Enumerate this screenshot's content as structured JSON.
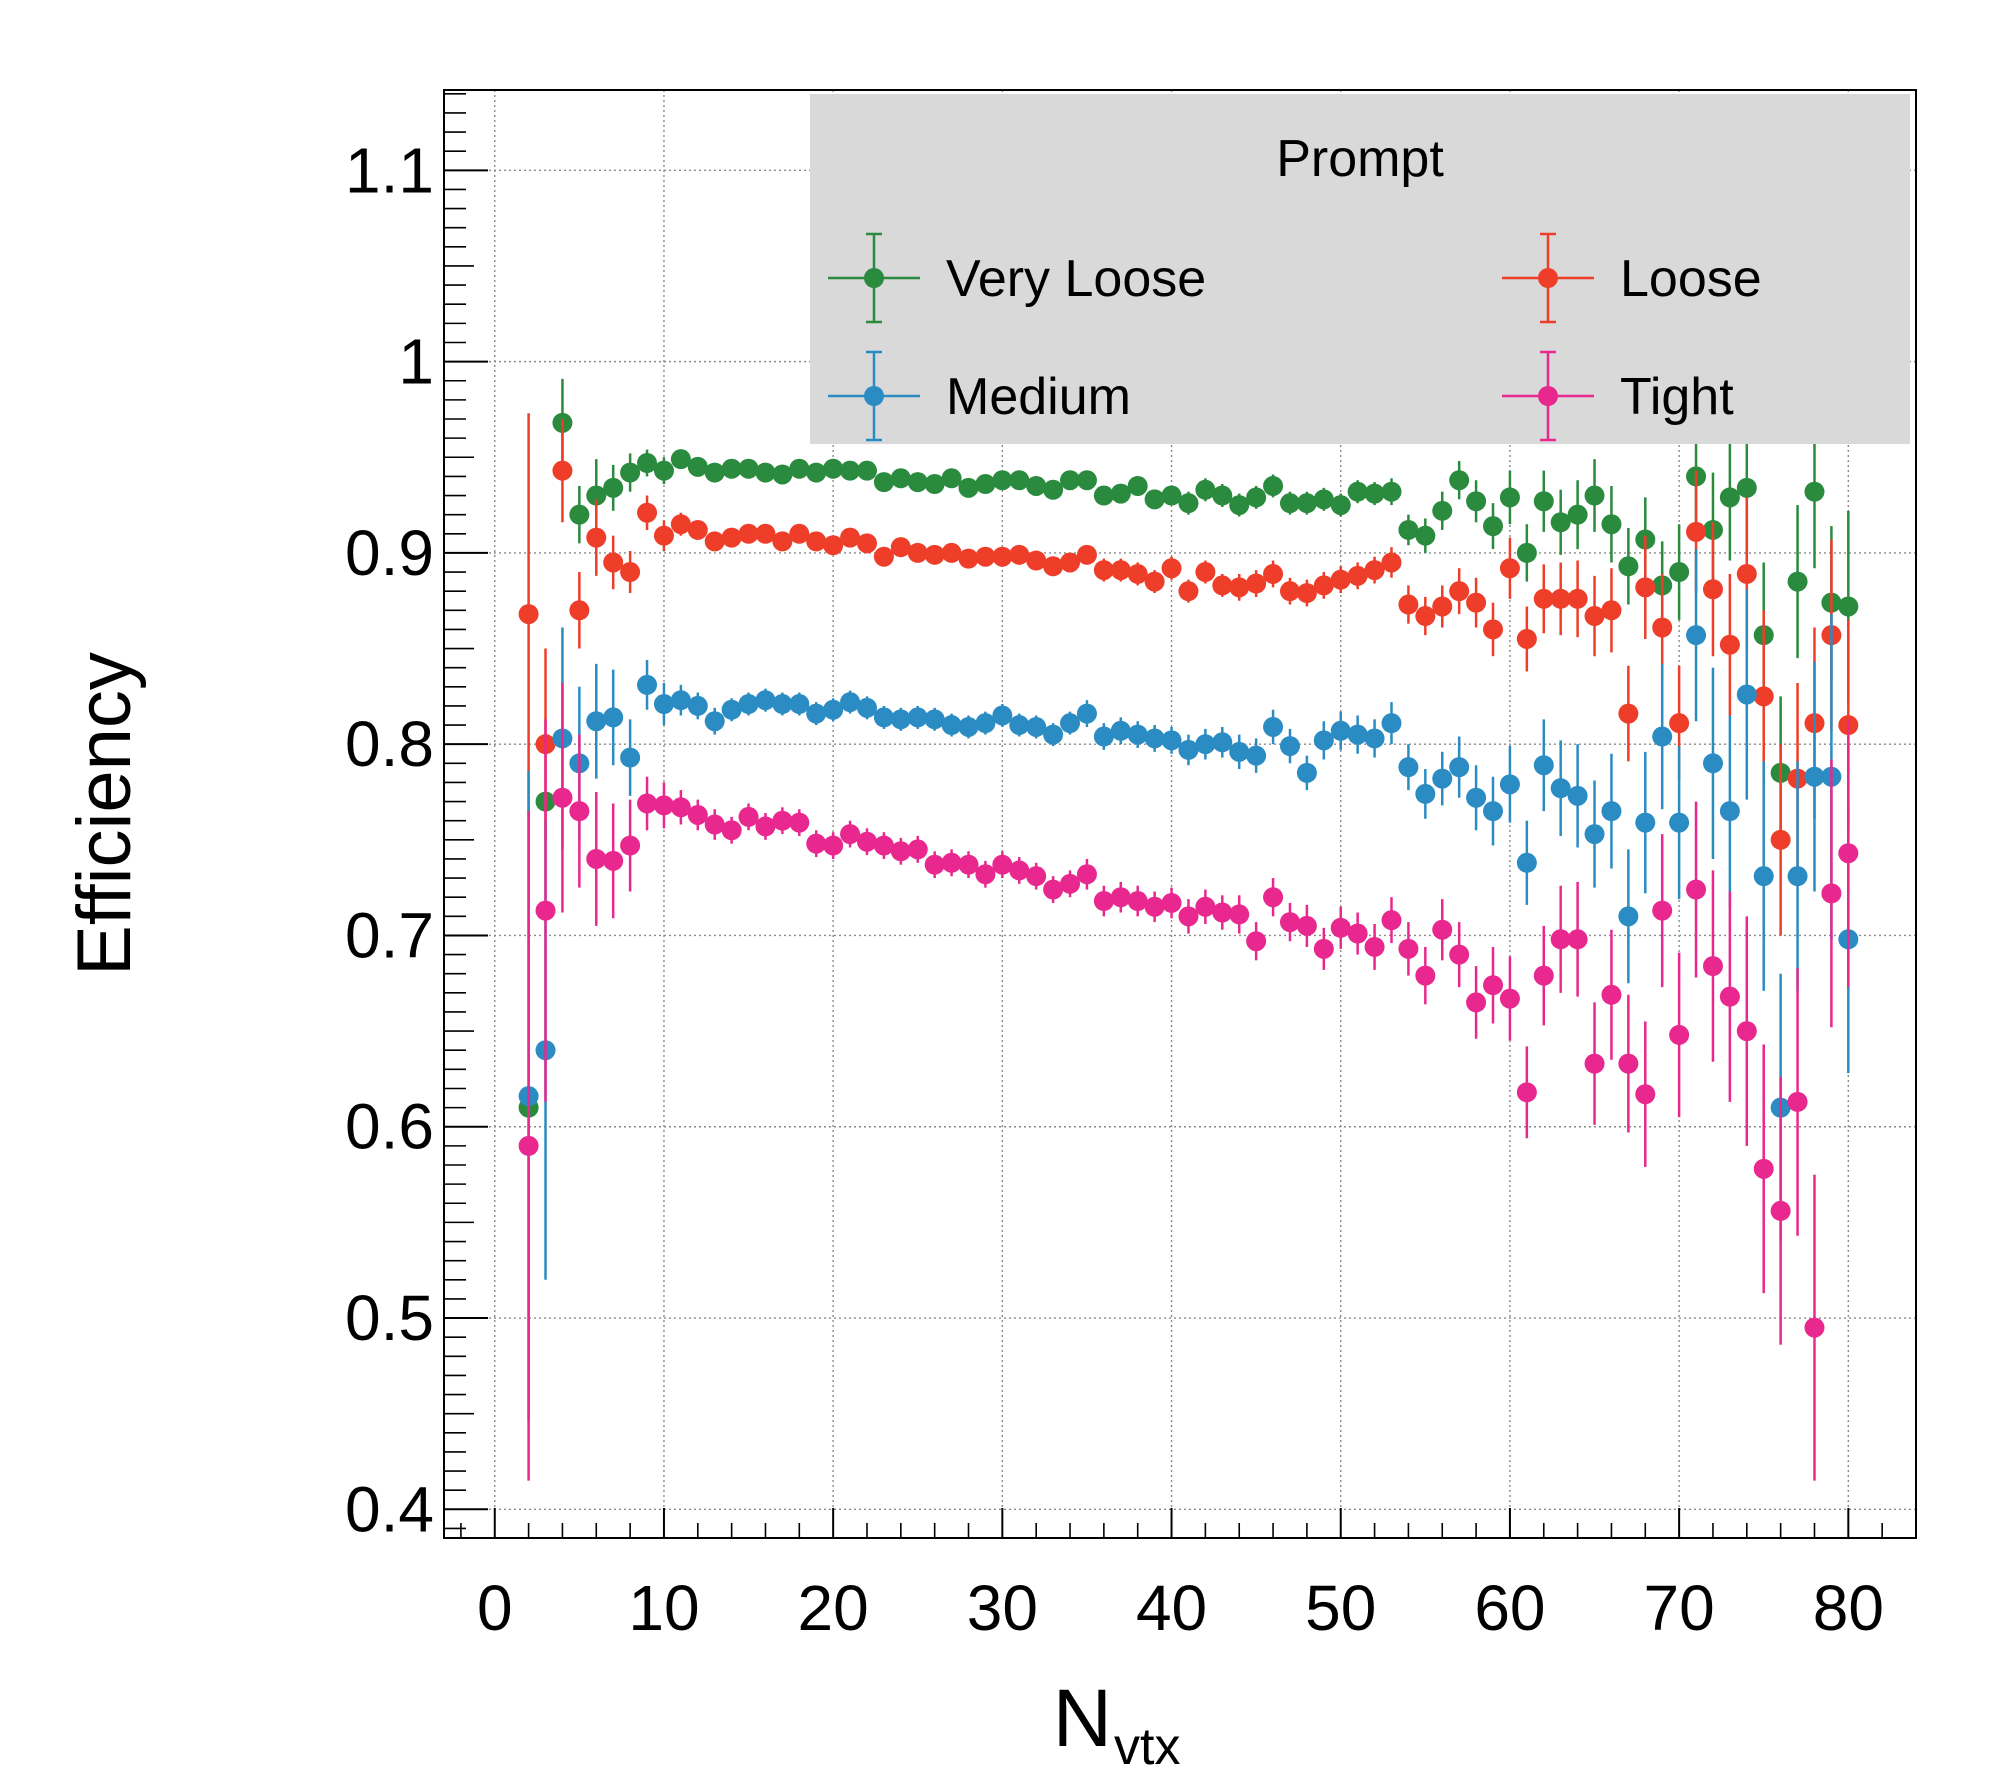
{
  "chart_data": {
    "type": "scatter",
    "title": "",
    "xlabel": "N",
    "xlabel_sub": "vtx",
    "ylabel": "Efficiency",
    "xlim": [
      -3,
      84
    ],
    "ylim": [
      0.385,
      1.142
    ],
    "xticks": [
      0,
      10,
      20,
      30,
      40,
      50,
      60,
      70,
      80
    ],
    "yticks": [
      0.4,
      0.5,
      0.6,
      0.7,
      0.8,
      0.9,
      1,
      1.1
    ],
    "xtick_labels": [
      "0",
      "10",
      "20",
      "30",
      "40",
      "50",
      "60",
      "70",
      "80"
    ],
    "ytick_labels": [
      "0.4",
      "0.5",
      "0.6",
      "0.7",
      "0.8",
      "0.9",
      "1",
      "1.1"
    ],
    "grid": true,
    "legend": {
      "title": "Prompt",
      "placement": "top-right",
      "background": "#d9d9d9",
      "columns": 2
    },
    "series": [
      {
        "name": "Very Loose",
        "color": "#2a8a3e",
        "x": [
          2,
          3,
          4,
          5,
          6,
          7,
          8,
          9,
          10,
          11,
          12,
          13,
          14,
          15,
          16,
          17,
          18,
          19,
          20,
          21,
          22,
          23,
          24,
          25,
          26,
          27,
          28,
          29,
          30,
          31,
          32,
          33,
          34,
          35,
          36,
          37,
          38,
          39,
          40,
          41,
          42,
          43,
          44,
          45,
          46,
          47,
          48,
          49,
          50,
          51,
          52,
          53,
          54,
          55,
          56,
          57,
          58,
          59,
          60,
          61,
          62,
          63,
          64,
          65,
          66,
          67,
          68,
          69,
          70,
          71,
          72,
          73,
          74,
          75,
          76,
          77,
          78,
          79,
          80
        ],
        "y": [
          0.61,
          0.77,
          0.968,
          0.92,
          0.93,
          0.934,
          0.942,
          0.947,
          0.943,
          0.949,
          0.945,
          0.942,
          0.944,
          0.944,
          0.942,
          0.941,
          0.944,
          0.942,
          0.944,
          0.943,
          0.943,
          0.937,
          0.939,
          0.937,
          0.936,
          0.939,
          0.934,
          0.936,
          0.938,
          0.938,
          0.935,
          0.933,
          0.938,
          0.938,
          0.93,
          0.931,
          0.935,
          0.928,
          0.93,
          0.926,
          0.933,
          0.93,
          0.925,
          0.929,
          0.935,
          0.926,
          0.926,
          0.928,
          0.925,
          0.932,
          0.931,
          0.932,
          0.912,
          0.909,
          0.922,
          0.938,
          0.927,
          0.914,
          0.929,
          0.9,
          0.927,
          0.916,
          0.92,
          0.93,
          0.915,
          0.893,
          0.907,
          0.883,
          0.89,
          0.94,
          0.912,
          0.929,
          0.934,
          0.857,
          0.785,
          0.885,
          0.932,
          0.874,
          0.872
        ],
        "err": [
          0,
          0,
          0.023,
          0.015,
          0.019,
          0.012,
          0.01,
          0.007,
          0.007,
          0.005,
          0.005,
          0.004,
          0.004,
          0.004,
          0.004,
          0.004,
          0.004,
          0.004,
          0.004,
          0.004,
          0.004,
          0.004,
          0.004,
          0.004,
          0.004,
          0.004,
          0.004,
          0.004,
          0.004,
          0.004,
          0.004,
          0.005,
          0.005,
          0.005,
          0.005,
          0.005,
          0.005,
          0.005,
          0.005,
          0.006,
          0.006,
          0.006,
          0.006,
          0.006,
          0.006,
          0.006,
          0.006,
          0.006,
          0.006,
          0.006,
          0.006,
          0.007,
          0.008,
          0.009,
          0.01,
          0.01,
          0.011,
          0.012,
          0.014,
          0.015,
          0.016,
          0.017,
          0.018,
          0.019,
          0.02,
          0.02,
          0.022,
          0.023,
          0.025,
          0.027,
          0.03,
          0.033,
          0.035,
          0.038,
          0.04,
          0.04,
          0.04,
          0.04,
          0.05
        ]
      },
      {
        "name": "Loose",
        "color": "#ee3e2a",
        "x": [
          2,
          3,
          4,
          5,
          6,
          7,
          8,
          9,
          10,
          11,
          12,
          13,
          14,
          15,
          16,
          17,
          18,
          19,
          20,
          21,
          22,
          23,
          24,
          25,
          26,
          27,
          28,
          29,
          30,
          31,
          32,
          33,
          34,
          35,
          36,
          37,
          38,
          39,
          40,
          41,
          42,
          43,
          44,
          45,
          46,
          47,
          48,
          49,
          50,
          51,
          52,
          53,
          54,
          55,
          56,
          57,
          58,
          59,
          60,
          61,
          62,
          63,
          64,
          65,
          66,
          67,
          68,
          69,
          70,
          71,
          72,
          73,
          74,
          75,
          76,
          77,
          78,
          79,
          80
        ],
        "y": [
          0.868,
          0.8,
          0.943,
          0.87,
          0.908,
          0.895,
          0.89,
          0.921,
          0.909,
          0.915,
          0.912,
          0.906,
          0.908,
          0.91,
          0.91,
          0.906,
          0.91,
          0.906,
          0.904,
          0.908,
          0.905,
          0.898,
          0.903,
          0.9,
          0.899,
          0.9,
          0.897,
          0.898,
          0.898,
          0.899,
          0.896,
          0.893,
          0.895,
          0.899,
          0.891,
          0.891,
          0.889,
          0.885,
          0.892,
          0.88,
          0.89,
          0.883,
          0.882,
          0.884,
          0.889,
          0.88,
          0.879,
          0.883,
          0.886,
          0.888,
          0.891,
          0.895,
          0.873,
          0.867,
          0.872,
          0.88,
          0.874,
          0.86,
          0.892,
          0.855,
          0.876,
          0.876,
          0.876,
          0.867,
          0.87,
          0.816,
          0.882,
          0.861,
          0.811,
          0.911,
          0.881,
          0.852,
          0.889,
          0.825,
          0.75,
          0.782,
          0.811,
          0.857,
          0.81
        ],
        "err": [
          0.105,
          0.05,
          0.027,
          0.02,
          0.02,
          0.014,
          0.011,
          0.009,
          0.008,
          0.006,
          0.005,
          0.005,
          0.005,
          0.005,
          0.005,
          0.005,
          0.005,
          0.005,
          0.005,
          0.005,
          0.005,
          0.005,
          0.005,
          0.005,
          0.005,
          0.005,
          0.005,
          0.005,
          0.005,
          0.005,
          0.005,
          0.005,
          0.005,
          0.005,
          0.006,
          0.006,
          0.006,
          0.006,
          0.006,
          0.006,
          0.006,
          0.006,
          0.007,
          0.007,
          0.007,
          0.007,
          0.007,
          0.007,
          0.007,
          0.007,
          0.007,
          0.008,
          0.01,
          0.01,
          0.011,
          0.012,
          0.013,
          0.014,
          0.016,
          0.017,
          0.018,
          0.019,
          0.02,
          0.021,
          0.022,
          0.025,
          0.027,
          0.028,
          0.03,
          0.032,
          0.035,
          0.037,
          0.04,
          0.045,
          0.05,
          0.05,
          0.05,
          0.05,
          0.055
        ]
      },
      {
        "name": "Medium",
        "color": "#2b8cc4",
        "x": [
          2,
          3,
          4,
          5,
          6,
          7,
          8,
          9,
          10,
          11,
          12,
          13,
          14,
          15,
          16,
          17,
          18,
          19,
          20,
          21,
          22,
          23,
          24,
          25,
          26,
          27,
          28,
          29,
          30,
          31,
          32,
          33,
          34,
          35,
          36,
          37,
          38,
          39,
          40,
          41,
          42,
          43,
          44,
          45,
          46,
          47,
          48,
          49,
          50,
          51,
          52,
          53,
          54,
          55,
          56,
          57,
          58,
          59,
          60,
          61,
          62,
          63,
          64,
          65,
          66,
          67,
          68,
          69,
          70,
          71,
          72,
          73,
          74,
          75,
          76,
          77,
          78,
          79,
          80
        ],
        "y": [
          0.616,
          0.64,
          0.803,
          0.79,
          0.812,
          0.814,
          0.793,
          0.831,
          0.821,
          0.823,
          0.82,
          0.812,
          0.818,
          0.821,
          0.823,
          0.821,
          0.821,
          0.816,
          0.818,
          0.822,
          0.819,
          0.814,
          0.813,
          0.814,
          0.813,
          0.81,
          0.809,
          0.811,
          0.815,
          0.81,
          0.809,
          0.805,
          0.811,
          0.816,
          0.804,
          0.807,
          0.805,
          0.803,
          0.802,
          0.797,
          0.8,
          0.801,
          0.796,
          0.794,
          0.809,
          0.799,
          0.785,
          0.802,
          0.807,
          0.805,
          0.803,
          0.811,
          0.788,
          0.774,
          0.782,
          0.788,
          0.772,
          0.765,
          0.779,
          0.738,
          0.789,
          0.777,
          0.773,
          0.753,
          0.765,
          0.71,
          0.759,
          0.804,
          0.759,
          0.857,
          0.79,
          0.765,
          0.826,
          0.731,
          0.61,
          0.731,
          0.783,
          0.783,
          0.698
        ],
        "err": [
          0.17,
          0.12,
          0.058,
          0.04,
          0.03,
          0.025,
          0.02,
          0.013,
          0.011,
          0.008,
          0.007,
          0.007,
          0.006,
          0.006,
          0.006,
          0.006,
          0.006,
          0.006,
          0.006,
          0.006,
          0.006,
          0.006,
          0.006,
          0.006,
          0.006,
          0.006,
          0.006,
          0.006,
          0.006,
          0.006,
          0.006,
          0.006,
          0.006,
          0.007,
          0.007,
          0.007,
          0.007,
          0.007,
          0.007,
          0.008,
          0.008,
          0.008,
          0.009,
          0.009,
          0.009,
          0.009,
          0.009,
          0.01,
          0.01,
          0.01,
          0.01,
          0.011,
          0.012,
          0.013,
          0.014,
          0.016,
          0.017,
          0.018,
          0.02,
          0.022,
          0.024,
          0.025,
          0.027,
          0.028,
          0.03,
          0.035,
          0.037,
          0.038,
          0.04,
          0.045,
          0.05,
          0.05,
          0.055,
          0.06,
          0.07,
          0.06,
          0.06,
          0.085,
          0.07
        ]
      },
      {
        "name": "Tight",
        "color": "#e8288e",
        "x": [
          2,
          3,
          4,
          5,
          6,
          7,
          8,
          9,
          10,
          11,
          12,
          13,
          14,
          15,
          16,
          17,
          18,
          19,
          20,
          21,
          22,
          23,
          24,
          25,
          26,
          27,
          28,
          29,
          30,
          31,
          32,
          33,
          34,
          35,
          36,
          37,
          38,
          39,
          40,
          41,
          42,
          43,
          44,
          45,
          46,
          47,
          48,
          49,
          50,
          51,
          52,
          53,
          54,
          55,
          56,
          57,
          58,
          59,
          60,
          61,
          62,
          63,
          64,
          65,
          66,
          67,
          68,
          69,
          70,
          71,
          72,
          73,
          74,
          75,
          76,
          77,
          78,
          79,
          80
        ],
        "y": [
          0.59,
          0.713,
          0.772,
          0.765,
          0.74,
          0.739,
          0.747,
          0.769,
          0.768,
          0.767,
          0.763,
          0.758,
          0.755,
          0.762,
          0.757,
          0.76,
          0.759,
          0.748,
          0.747,
          0.753,
          0.749,
          0.747,
          0.744,
          0.745,
          0.737,
          0.738,
          0.737,
          0.732,
          0.737,
          0.734,
          0.731,
          0.724,
          0.727,
          0.732,
          0.718,
          0.72,
          0.718,
          0.715,
          0.717,
          0.71,
          0.715,
          0.712,
          0.711,
          0.697,
          0.72,
          0.707,
          0.705,
          0.693,
          0.704,
          0.701,
          0.694,
          0.708,
          0.693,
          0.679,
          0.703,
          0.69,
          0.665,
          0.674,
          0.667,
          0.618,
          0.679,
          0.698,
          0.698,
          0.633,
          0.669,
          0.633,
          0.617,
          0.713,
          0.648,
          0.724,
          0.684,
          0.668,
          0.65,
          0.578,
          0.556,
          0.613,
          0.495,
          0.722,
          0.743
        ],
        "err": [
          0.175,
          0.1,
          0.06,
          0.04,
          0.035,
          0.03,
          0.024,
          0.014,
          0.012,
          0.009,
          0.008,
          0.008,
          0.007,
          0.007,
          0.007,
          0.007,
          0.007,
          0.007,
          0.007,
          0.007,
          0.007,
          0.007,
          0.007,
          0.007,
          0.007,
          0.007,
          0.007,
          0.007,
          0.007,
          0.007,
          0.007,
          0.007,
          0.007,
          0.008,
          0.008,
          0.008,
          0.008,
          0.008,
          0.008,
          0.009,
          0.009,
          0.009,
          0.01,
          0.01,
          0.01,
          0.01,
          0.011,
          0.011,
          0.011,
          0.011,
          0.012,
          0.012,
          0.014,
          0.015,
          0.016,
          0.017,
          0.019,
          0.02,
          0.022,
          0.024,
          0.026,
          0.028,
          0.03,
          0.032,
          0.034,
          0.036,
          0.038,
          0.04,
          0.043,
          0.046,
          0.05,
          0.055,
          0.06,
          0.065,
          0.07,
          0.07,
          0.08,
          0.07,
          0.07
        ]
      }
    ]
  }
}
